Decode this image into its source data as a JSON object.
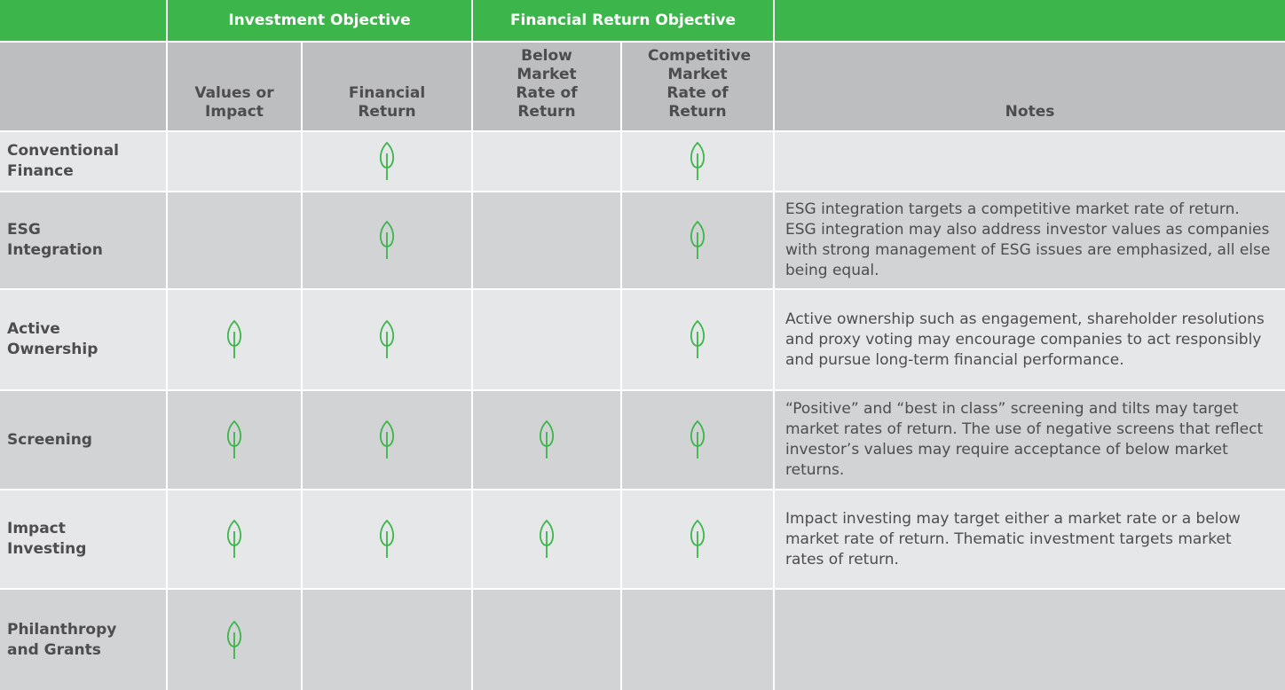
{
  "table": {
    "header_groups": [
      "Investment Objective",
      "Financial Return Objective"
    ],
    "columns": [
      "Values or Impact",
      "Financial Return",
      "Below Market Rate of Return",
      "Competitive Market Rate of Return",
      "Notes"
    ],
    "rows": [
      {
        "label": "Conventional Finance",
        "checks": [
          false,
          true,
          false,
          true
        ]
      },
      {
        "label": "ESG Integration",
        "checks": [
          false,
          true,
          false,
          true
        ],
        "notes": "ESG integration targets a competitive market rate of return. ESG integration may also address investor values as companies with strong management of ESG issues are emphasized, all else being equal."
      },
      {
        "label": "Active Ownership",
        "checks": [
          true,
          true,
          false,
          true
        ],
        "notes": "Active ownership such as engagement, shareholder resolutions and proxy voting may encourage companies to act responsibly and pursue long-term financial performance."
      },
      {
        "label": "Screening",
        "checks": [
          true,
          true,
          true,
          true
        ],
        "notes": "“Positive” and “best in class” screening and tilts may target market rates of return. The use of negative screens that reflect investor’s values may require acceptance of below market returns."
      },
      {
        "label": "Impact Investing",
        "checks": [
          true,
          true,
          true,
          true
        ],
        "notes": "Impact investing may target either a market rate or a below market rate of return. Thematic investment targets market rates of return."
      },
      {
        "label": "Philanthropy and Grants",
        "checks": [
          true,
          false,
          false,
          false
        ]
      }
    ]
  }
}
